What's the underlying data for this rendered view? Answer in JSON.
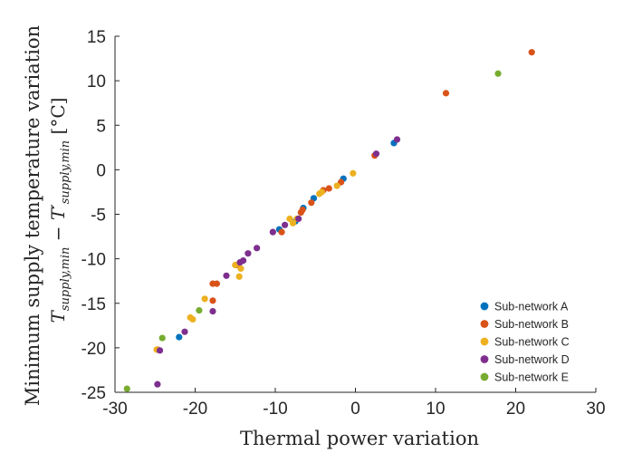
{
  "chart_data": {
    "type": "scatter",
    "xlabel": "Thermal power variation",
    "ylabel_line1": "Minimum supply temperature variation",
    "ylabel_formula": {
      "t1": "T",
      "sub1": "supply,min",
      "minus": " − ",
      "t2": "T′",
      "sub2": "supply,min",
      "unit": "[°C]"
    },
    "xlim": [
      -30,
      30
    ],
    "ylim": [
      -25,
      15
    ],
    "xticks": [
      -30,
      -20,
      -10,
      0,
      10,
      20,
      30
    ],
    "yticks": [
      -25,
      -20,
      -15,
      -10,
      -5,
      0,
      5,
      10,
      15
    ],
    "grid": false,
    "legend_position": "bottom-right",
    "series": [
      {
        "name": "Sub-network A",
        "color": "#0072BD",
        "points": [
          [
            -22,
            -18.8
          ],
          [
            -9.5,
            -6.7
          ],
          [
            -7.5,
            -5.8
          ],
          [
            -6.5,
            -4.3
          ],
          [
            -5.2,
            -3.2
          ],
          [
            -1.5,
            -1.0
          ],
          [
            4.8,
            3.0
          ]
        ]
      },
      {
        "name": "Sub-network B",
        "color": "#D95319",
        "points": [
          [
            22,
            13.2
          ],
          [
            11.3,
            8.6
          ],
          [
            2.4,
            1.6
          ],
          [
            -1.8,
            -1.4
          ],
          [
            -3.3,
            -2.1
          ],
          [
            -4.0,
            -2.3
          ],
          [
            -5.5,
            -3.7
          ],
          [
            -6.8,
            -4.8
          ],
          [
            -6.6,
            -4.5
          ],
          [
            -9.2,
            -7.0
          ],
          [
            -14.8,
            -10.7
          ],
          [
            -17.3,
            -12.8
          ],
          [
            -17.8,
            -12.8
          ],
          [
            -17.8,
            -14.7
          ],
          [
            -24.7,
            -20.2
          ]
        ]
      },
      {
        "name": "Sub-network C",
        "color": "#EDB120",
        "points": [
          [
            -0.3,
            -0.4
          ],
          [
            -2.3,
            -1.8
          ],
          [
            -4.2,
            -2.5
          ],
          [
            -4.5,
            -2.7
          ],
          [
            -7.3,
            -5.5
          ],
          [
            -8.2,
            -5.5
          ],
          [
            -7.8,
            -6.0
          ],
          [
            -14.3,
            -11.1
          ],
          [
            -14.5,
            -12.0
          ],
          [
            -15.0,
            -10.7
          ],
          [
            -18.8,
            -14.5
          ],
          [
            -20.3,
            -16.8
          ],
          [
            -20.6,
            -16.6
          ],
          [
            -24.8,
            -20.2
          ]
        ]
      },
      {
        "name": "Sub-network D",
        "color": "#7E2F8E",
        "points": [
          [
            5.2,
            3.4
          ],
          [
            2.6,
            1.8
          ],
          [
            -7.1,
            -5.5
          ],
          [
            -8.8,
            -6.2
          ],
          [
            -10.3,
            -7.0
          ],
          [
            -12.3,
            -8.8
          ],
          [
            -13.4,
            -9.4
          ],
          [
            -14.0,
            -10.2
          ],
          [
            -14.4,
            -10.4
          ],
          [
            -16.1,
            -11.9
          ],
          [
            -17.8,
            -15.9
          ],
          [
            -21.3,
            -18.2
          ],
          [
            -24.4,
            -20.3
          ],
          [
            -24.7,
            -24.1
          ]
        ]
      },
      {
        "name": "Sub-network E",
        "color": "#77AC30",
        "points": [
          [
            17.8,
            10.8
          ],
          [
            -19.5,
            -15.8
          ],
          [
            -24.1,
            -18.9
          ],
          [
            -28.5,
            -24.6
          ]
        ]
      }
    ]
  }
}
